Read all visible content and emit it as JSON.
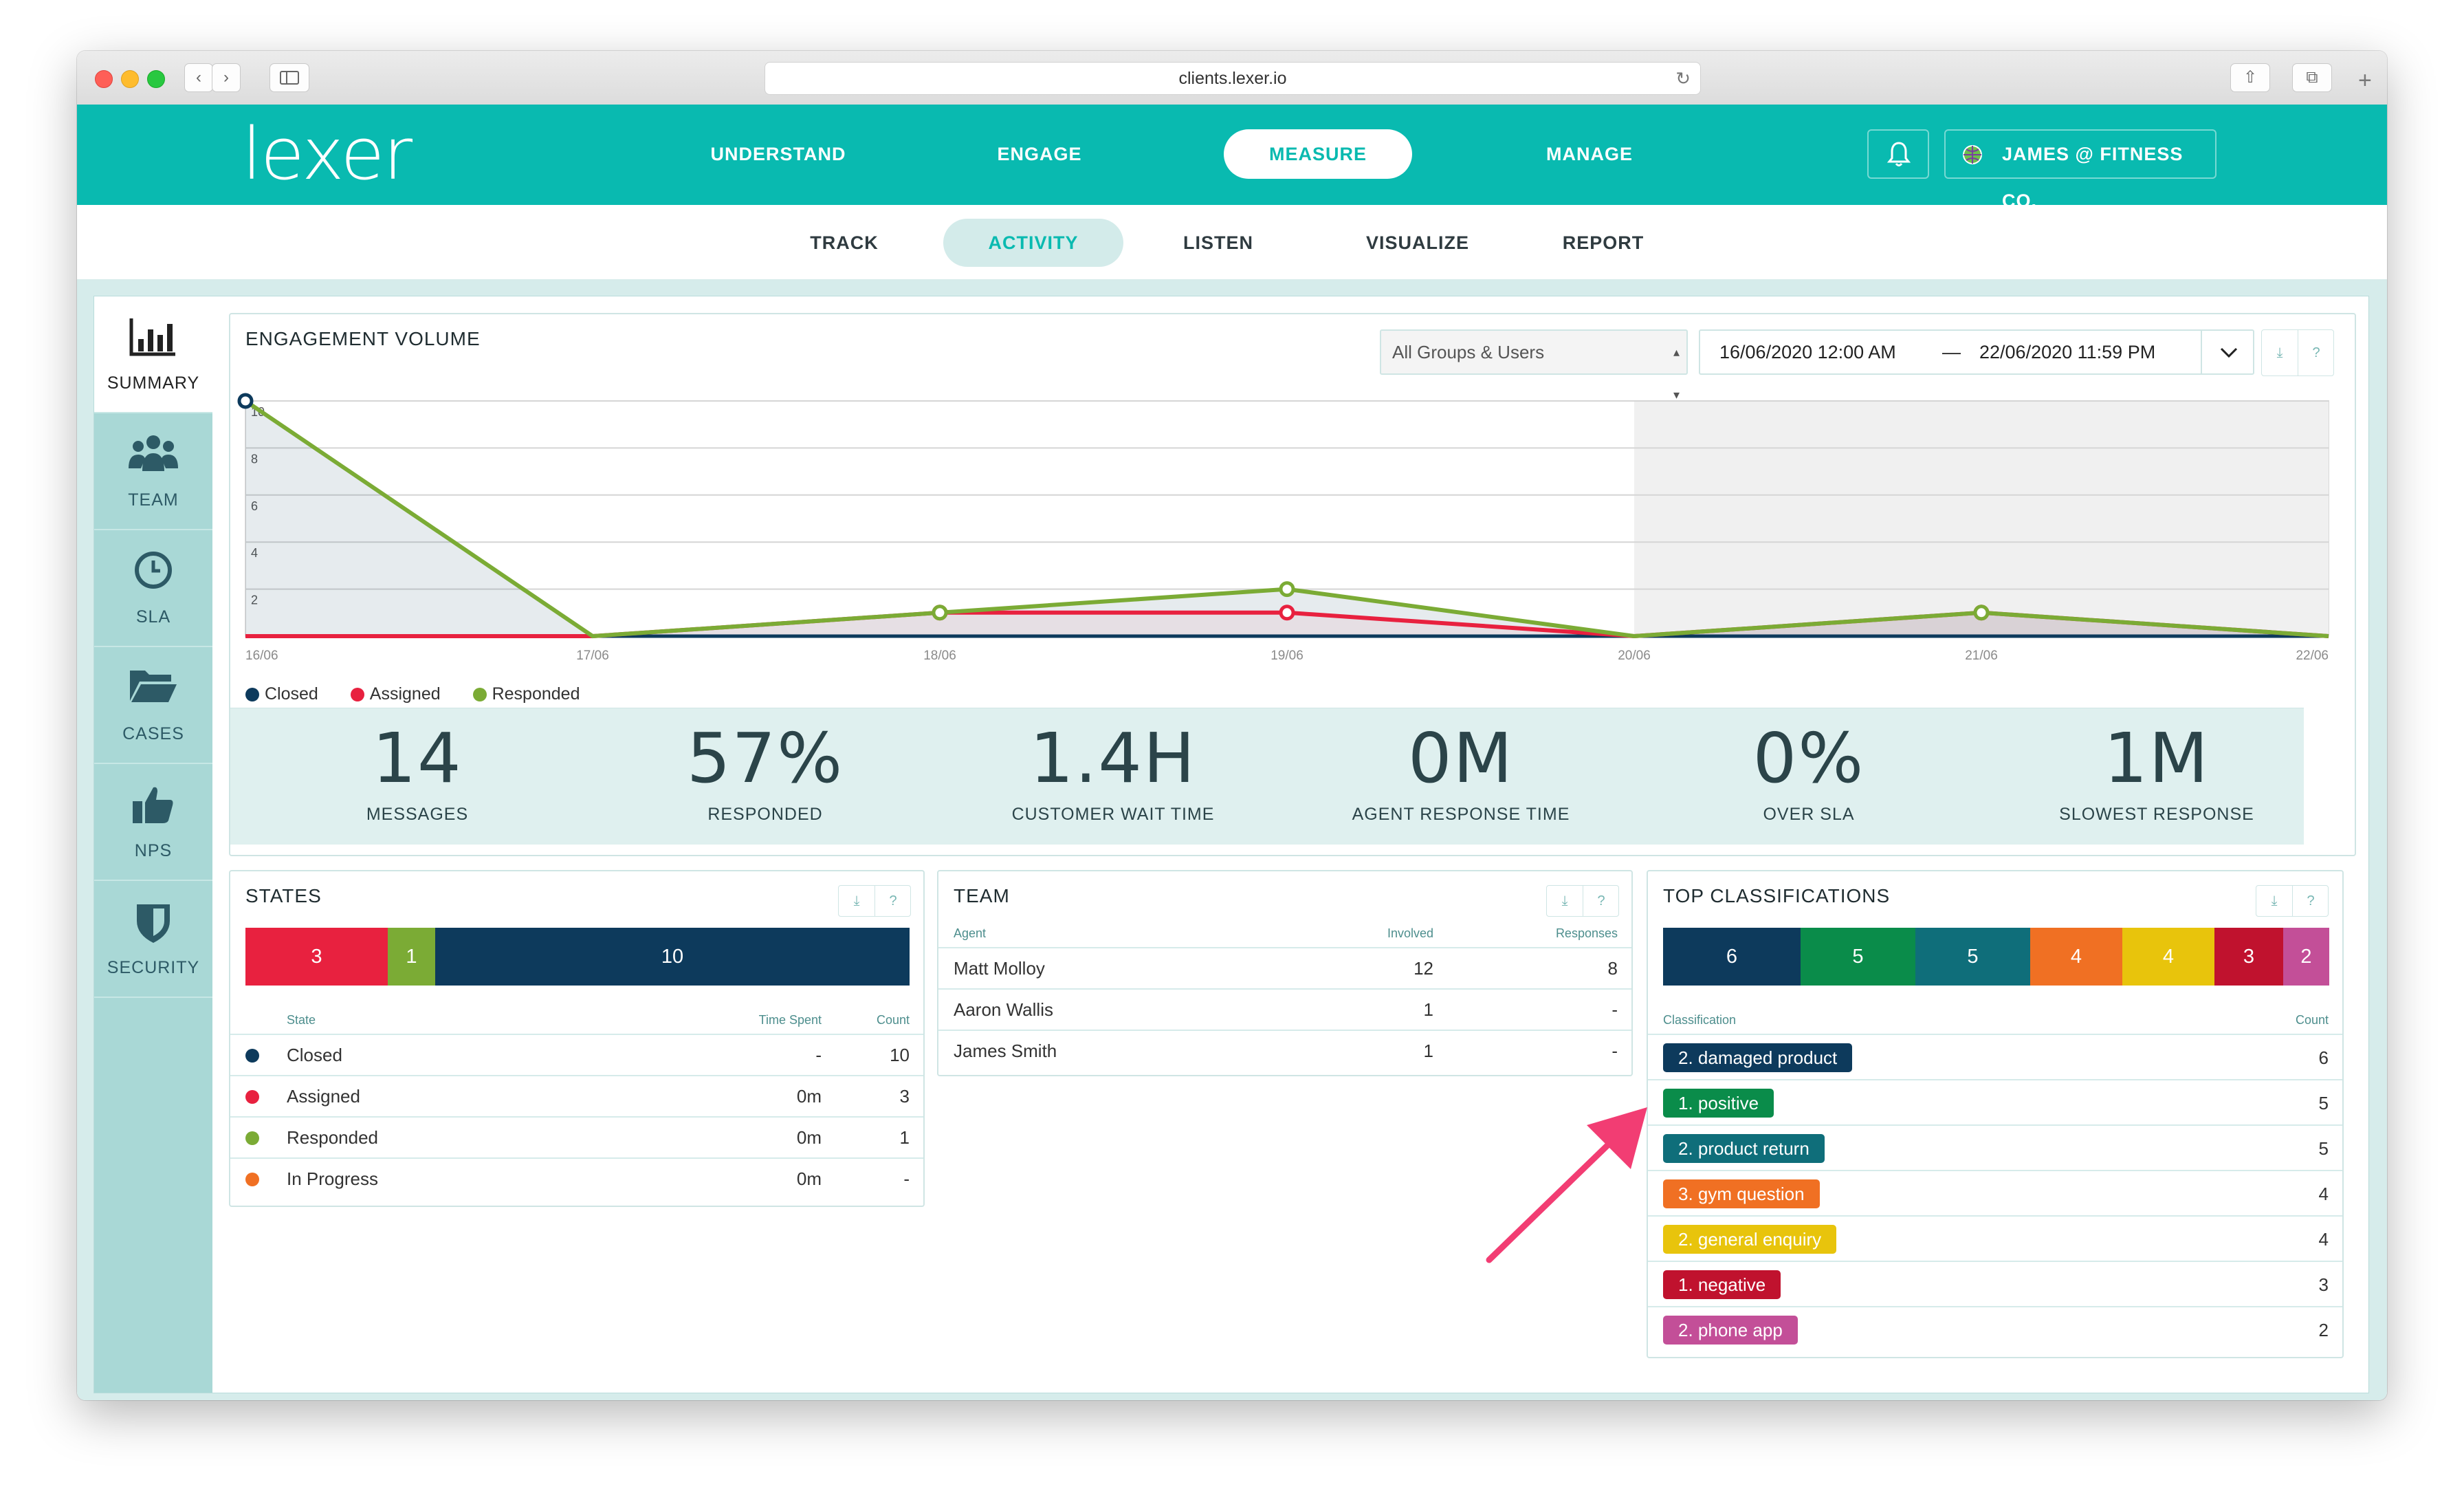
{
  "browser": {
    "url": "clients.lexer.io",
    "back_icon": "‹",
    "forward_icon": "›",
    "reload_icon": "↻",
    "share_icon": "⇧",
    "tabs_icon": "⧉",
    "plus_icon": "+"
  },
  "header": {
    "logo": "lexer",
    "nav": [
      {
        "label": "UNDERSTAND"
      },
      {
        "label": "ENGAGE"
      },
      {
        "label": "MEASURE"
      },
      {
        "label": "MANAGE"
      }
    ],
    "active_nav": "MEASURE",
    "user_label": "JAMES @ FITNESS CO.",
    "accent": "#09bab0"
  },
  "subnav": [
    {
      "label": "TRACK"
    },
    {
      "label": "ACTIVITY"
    },
    {
      "label": "LISTEN"
    },
    {
      "label": "VISUALIZE"
    },
    {
      "label": "REPORT"
    }
  ],
  "sidebar": [
    {
      "label": "SUMMARY",
      "icon": "bar-chart-icon"
    },
    {
      "label": "TEAM",
      "icon": "team-icon"
    },
    {
      "label": "SLA",
      "icon": "clock-icon"
    },
    {
      "label": "CASES",
      "icon": "folder-icon"
    },
    {
      "label": "NPS",
      "icon": "thumbs-up-icon"
    },
    {
      "label": "SECURITY",
      "icon": "shield-icon"
    }
  ],
  "engagement": {
    "title": "ENGAGEMENT VOLUME",
    "group_select": "All Groups & Users",
    "date_from": "16/06/2020 12:00 AM",
    "date_sep": "—",
    "date_to": "22/06/2020 11:59 PM",
    "download_icon": "⤓",
    "help_icon": "?"
  },
  "chart_data": {
    "type": "line",
    "categories": [
      "16/06",
      "17/06",
      "18/06",
      "19/06",
      "20/06",
      "21/06",
      "22/06"
    ],
    "y_ticks": [
      "10",
      "8",
      "6",
      "4",
      "2"
    ],
    "ylim": [
      0,
      10
    ],
    "series": [
      {
        "name": "Closed",
        "color": "#0d3a5c",
        "values": [
          10,
          0,
          0,
          0,
          0,
          0,
          0
        ]
      },
      {
        "name": "Assigned",
        "color": "#e8213f",
        "values": [
          0,
          0,
          1,
          1,
          0,
          1,
          0
        ]
      },
      {
        "name": "Responded",
        "color": "#7bab35",
        "values": [
          10,
          0,
          1,
          2,
          0,
          1,
          0
        ]
      }
    ],
    "legend_position": "bottom-left",
    "grid": true,
    "shaded_region_from": "20/06"
  },
  "kpis": [
    {
      "value": "14",
      "label": "MESSAGES"
    },
    {
      "value": "57%",
      "label": "RESPONDED"
    },
    {
      "value": "1.4H",
      "label": "CUSTOMER WAIT TIME"
    },
    {
      "value": "0M",
      "label": "AGENT RESPONSE TIME"
    },
    {
      "value": "0%",
      "label": "OVER SLA"
    },
    {
      "value": "1M",
      "label": "SLOWEST RESPONSE"
    }
  ],
  "states": {
    "title": "STATES",
    "bar": [
      {
        "value": "3",
        "color": "#e8213f",
        "weight": 3
      },
      {
        "value": "1",
        "color": "#7bab35",
        "weight": 1
      },
      {
        "value": "10",
        "color": "#0d3a5c",
        "weight": 10
      }
    ],
    "headers": {
      "state": "State",
      "time": "Time Spent",
      "count": "Count"
    },
    "rows": [
      {
        "state": "Closed",
        "color": "#0d3a5c",
        "time": "-",
        "count": "10"
      },
      {
        "state": "Assigned",
        "color": "#e8213f",
        "time": "0m",
        "count": "3"
      },
      {
        "state": "Responded",
        "color": "#7bab35",
        "time": "0m",
        "count": "1"
      },
      {
        "state": "In Progress",
        "color": "#f07023",
        "time": "0m",
        "count": "-"
      }
    ]
  },
  "team": {
    "title": "TEAM",
    "headers": {
      "agent": "Agent",
      "involved": "Involved",
      "responses": "Responses"
    },
    "rows": [
      {
        "agent": "Matt Molloy",
        "involved": "12",
        "responses": "8"
      },
      {
        "agent": "Aaron Wallis",
        "involved": "1",
        "responses": "-"
      },
      {
        "agent": "James Smith",
        "involved": "1",
        "responses": "-"
      }
    ]
  },
  "classifications": {
    "title": "TOP CLASSIFICATIONS",
    "bar": [
      {
        "value": "6",
        "color": "#0d3a5c",
        "weight": 6
      },
      {
        "value": "5",
        "color": "#0a8c4a",
        "weight": 5
      },
      {
        "value": "5",
        "color": "#0f6e7a",
        "weight": 5
      },
      {
        "value": "4",
        "color": "#f07023",
        "weight": 4
      },
      {
        "value": "4",
        "color": "#e8c40c",
        "weight": 4
      },
      {
        "value": "3",
        "color": "#c0122e",
        "weight": 3
      },
      {
        "value": "2",
        "color": "#c34f98",
        "weight": 2
      }
    ],
    "headers": {
      "classification": "Classification",
      "count": "Count"
    },
    "rows": [
      {
        "label": "2. damaged product",
        "color": "#0d3a5c",
        "count": "6"
      },
      {
        "label": "1. positive",
        "color": "#0a8c4a",
        "count": "5"
      },
      {
        "label": "2. product return",
        "color": "#0f6e7a",
        "count": "5"
      },
      {
        "label": "3. gym question",
        "color": "#f07023",
        "count": "4"
      },
      {
        "label": "2. general enquiry",
        "color": "#e8c40c",
        "count": "4"
      },
      {
        "label": "1. negative",
        "color": "#c0122e",
        "count": "3"
      },
      {
        "label": "2. phone app",
        "color": "#c34f98",
        "count": "2"
      }
    ]
  },
  "annotation": {
    "arrow_color": "#f23d73"
  }
}
